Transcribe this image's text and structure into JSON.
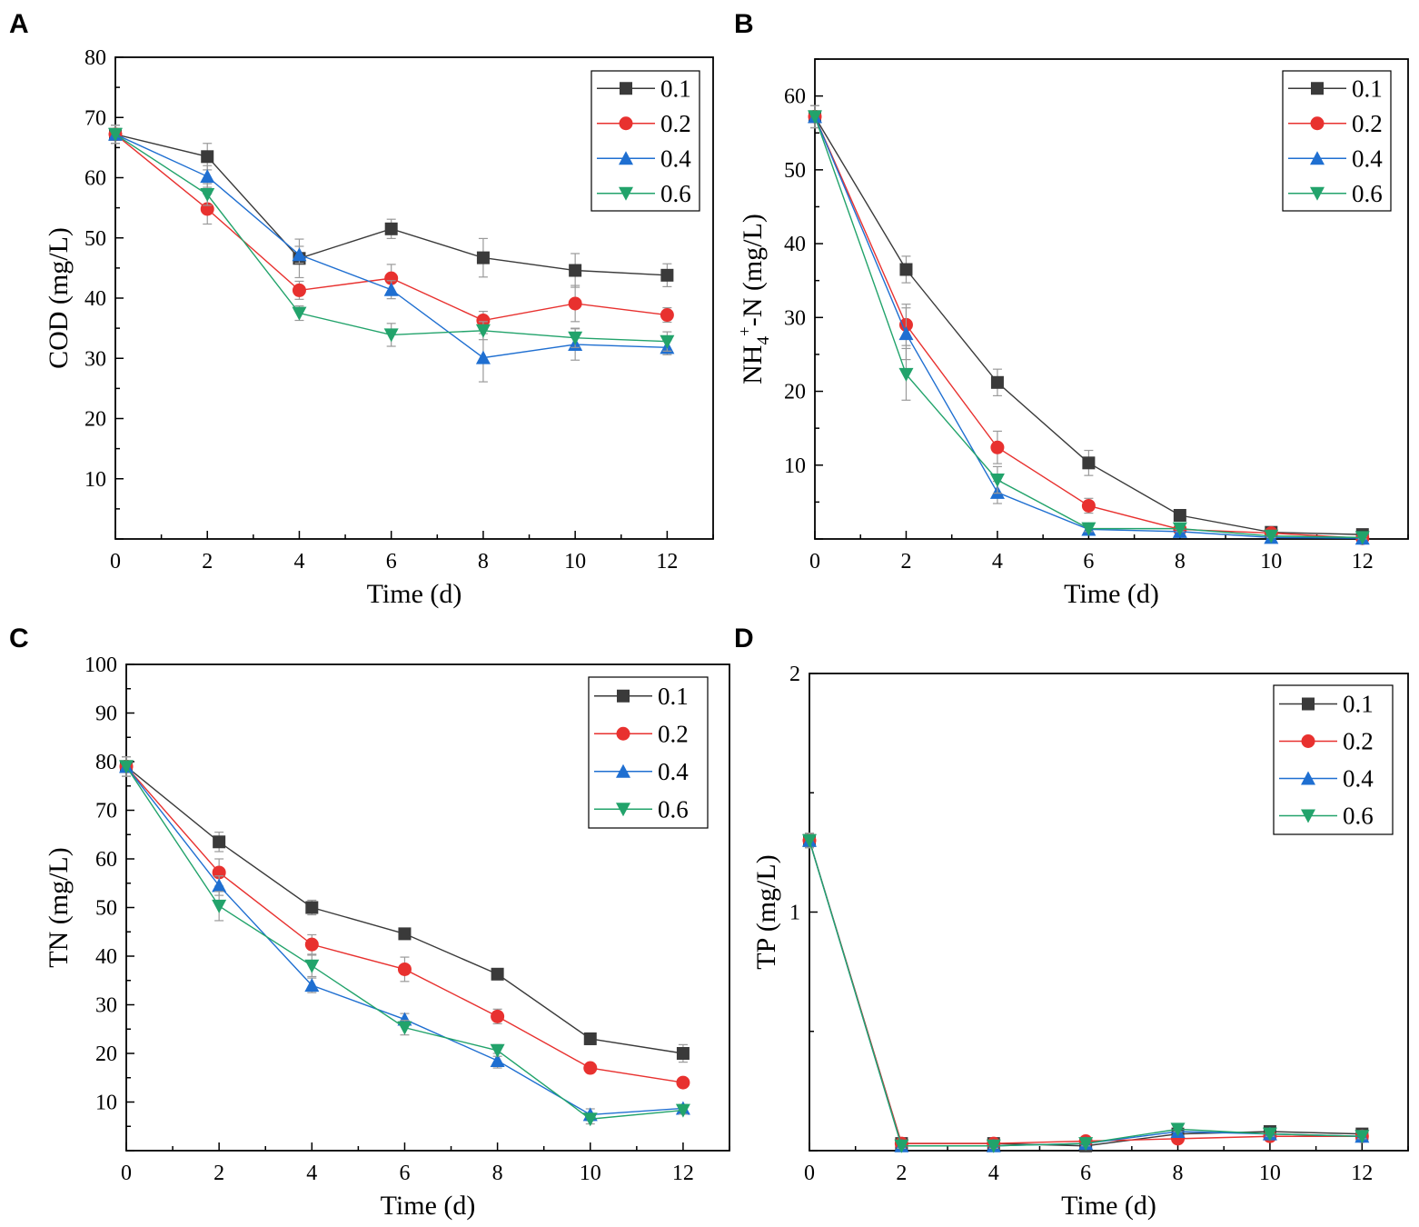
{
  "figure": {
    "series_style": [
      {
        "name": "0.1",
        "color": "#3a3a3a",
        "marker": "square"
      },
      {
        "name": "0.2",
        "color": "#e8312f",
        "marker": "circle"
      },
      {
        "name": "0.4",
        "color": "#1f6fd1",
        "marker": "triangle-up"
      },
      {
        "name": "0.6",
        "color": "#22a36b",
        "marker": "triangle-down"
      }
    ]
  },
  "chart_data": [
    {
      "panel": "A",
      "type": "line",
      "title": "",
      "xlabel": "Time (d)",
      "ylabel": "COD (mg/L)",
      "xlim": [
        0,
        13
      ],
      "ylim": [
        0,
        80
      ],
      "xticks": [
        0,
        2,
        4,
        6,
        8,
        10,
        12
      ],
      "yticks": [
        10,
        20,
        30,
        40,
        50,
        60,
        70,
        80
      ],
      "legend": "top-right",
      "x": [
        0,
        2,
        4,
        6,
        8,
        10,
        12
      ],
      "series": [
        {
          "name": "0.1",
          "values": [
            67.2,
            63.5,
            46.6,
            51.5,
            46.7,
            44.6,
            43.8
          ],
          "errors": [
            1.5,
            2.2,
            3.2,
            1.6,
            3.2,
            2.8,
            1.9
          ]
        },
        {
          "name": "0.2",
          "values": [
            67.2,
            54.8,
            41.3,
            43.3,
            36.3,
            39.1,
            37.2
          ],
          "errors": [
            1.5,
            2.5,
            1.5,
            2.3,
            1.5,
            3.0,
            1.2
          ]
        },
        {
          "name": "0.4",
          "values": [
            67.2,
            60.2,
            47.2,
            41.4,
            30.1,
            32.3,
            31.8
          ],
          "errors": [
            1.5,
            1.8,
            1.4,
            1.5,
            4.0,
            2.6,
            1.2
          ]
        },
        {
          "name": "0.6",
          "values": [
            67.2,
            57.2,
            37.5,
            33.9,
            34.6,
            33.4,
            32.8
          ],
          "errors": [
            1.5,
            1.8,
            1.2,
            1.9,
            1.5,
            1.6,
            1.6
          ]
        }
      ]
    },
    {
      "panel": "B",
      "type": "line",
      "title": "",
      "xlabel": "Time (d)",
      "ylabel_parts": [
        "NH",
        "4",
        "+",
        "-N (mg/L)"
      ],
      "xlim": [
        0,
        13
      ],
      "ylim": [
        0,
        65
      ],
      "xticks": [
        0,
        2,
        4,
        6,
        8,
        10,
        12
      ],
      "yticks": [
        10,
        20,
        30,
        40,
        50,
        60
      ],
      "legend": "top-right",
      "x": [
        0,
        2,
        4,
        6,
        8,
        10,
        12
      ],
      "series": [
        {
          "name": "0.1",
          "values": [
            57.2,
            36.5,
            21.2,
            10.3,
            3.2,
            0.9,
            0.6
          ],
          "errors": [
            1.5,
            1.8,
            1.8,
            1.7,
            0.5,
            0.3,
            0.3
          ]
        },
        {
          "name": "0.2",
          "values": [
            57.2,
            29.0,
            12.4,
            4.5,
            1.3,
            0.8,
            0.1
          ],
          "errors": [
            1.5,
            2.8,
            2.2,
            1.0,
            0.4,
            0.3,
            0.2
          ]
        },
        {
          "name": "0.4",
          "values": [
            57.2,
            27.8,
            6.3,
            1.3,
            1.0,
            0.2,
            0.1
          ],
          "errors": [
            1.5,
            3.5,
            1.5,
            0.4,
            0.3,
            0.2,
            0.2
          ]
        },
        {
          "name": "0.6",
          "values": [
            57.2,
            22.3,
            8.0,
            1.4,
            1.4,
            0.4,
            0.2
          ],
          "errors": [
            1.5,
            3.5,
            1.8,
            0.4,
            0.4,
            0.2,
            0.2
          ]
        }
      ]
    },
    {
      "panel": "C",
      "type": "line",
      "title": "",
      "xlabel": "Time (d)",
      "ylabel": "TN (mg/L)",
      "xlim": [
        0,
        13
      ],
      "ylim": [
        0,
        100
      ],
      "xticks": [
        0,
        2,
        4,
        6,
        8,
        10,
        12
      ],
      "yticks": [
        10,
        20,
        30,
        40,
        50,
        60,
        70,
        80,
        90,
        100
      ],
      "legend": "top-right",
      "x": [
        0,
        2,
        4,
        6,
        8,
        10,
        12
      ],
      "series": [
        {
          "name": "0.1",
          "values": [
            79.0,
            63.5,
            50.0,
            44.6,
            36.3,
            23.0,
            20.0
          ],
          "errors": [
            2.0,
            2.0,
            1.5,
            1.0,
            1.0,
            1.2,
            1.8
          ]
        },
        {
          "name": "0.2",
          "values": [
            79.0,
            57.2,
            42.4,
            37.3,
            27.6,
            17.0,
            14.0
          ],
          "errors": [
            2.0,
            2.8,
            2.0,
            2.5,
            1.5,
            0.8,
            0.8
          ]
        },
        {
          "name": "0.4",
          "values": [
            79.0,
            54.5,
            34.0,
            27.0,
            18.5,
            7.4,
            8.7
          ],
          "errors": [
            2.0,
            2.0,
            1.5,
            1.2,
            1.5,
            1.2,
            0.8
          ]
        },
        {
          "name": "0.6",
          "values": [
            79.0,
            50.3,
            38.0,
            25.3,
            20.6,
            6.5,
            8.3
          ],
          "errors": [
            2.0,
            3.0,
            2.2,
            1.5,
            1.2,
            1.0,
            0.8
          ]
        }
      ]
    },
    {
      "panel": "D",
      "type": "line",
      "title": "",
      "xlabel": "Time (d)",
      "ylabel": "TP (mg/L)",
      "xlim": [
        0,
        13
      ],
      "ylim": [
        0,
        2
      ],
      "xticks": [
        0,
        2,
        4,
        6,
        8,
        10,
        12
      ],
      "yticks": [
        1,
        2
      ],
      "legend": "top-right",
      "x": [
        0,
        2,
        4,
        6,
        8,
        10,
        12
      ],
      "series": [
        {
          "name": "0.1",
          "values": [
            1.3,
            0.03,
            0.03,
            0.02,
            0.07,
            0.08,
            0.07
          ],
          "errors": [
            0.03,
            0.01,
            0.01,
            0.01,
            0.01,
            0.01,
            0.01
          ]
        },
        {
          "name": "0.2",
          "values": [
            1.3,
            0.03,
            0.03,
            0.04,
            0.05,
            0.06,
            0.06
          ],
          "errors": [
            0.03,
            0.01,
            0.01,
            0.01,
            0.01,
            0.01,
            0.01
          ]
        },
        {
          "name": "0.4",
          "values": [
            1.3,
            0.02,
            0.02,
            0.03,
            0.08,
            0.07,
            0.06
          ],
          "errors": [
            0.03,
            0.01,
            0.01,
            0.01,
            0.01,
            0.01,
            0.01
          ]
        },
        {
          "name": "0.6",
          "values": [
            1.3,
            0.02,
            0.02,
            0.03,
            0.09,
            0.07,
            0.06
          ],
          "errors": [
            0.03,
            0.01,
            0.01,
            0.01,
            0.01,
            0.01,
            0.01
          ]
        }
      ]
    }
  ]
}
